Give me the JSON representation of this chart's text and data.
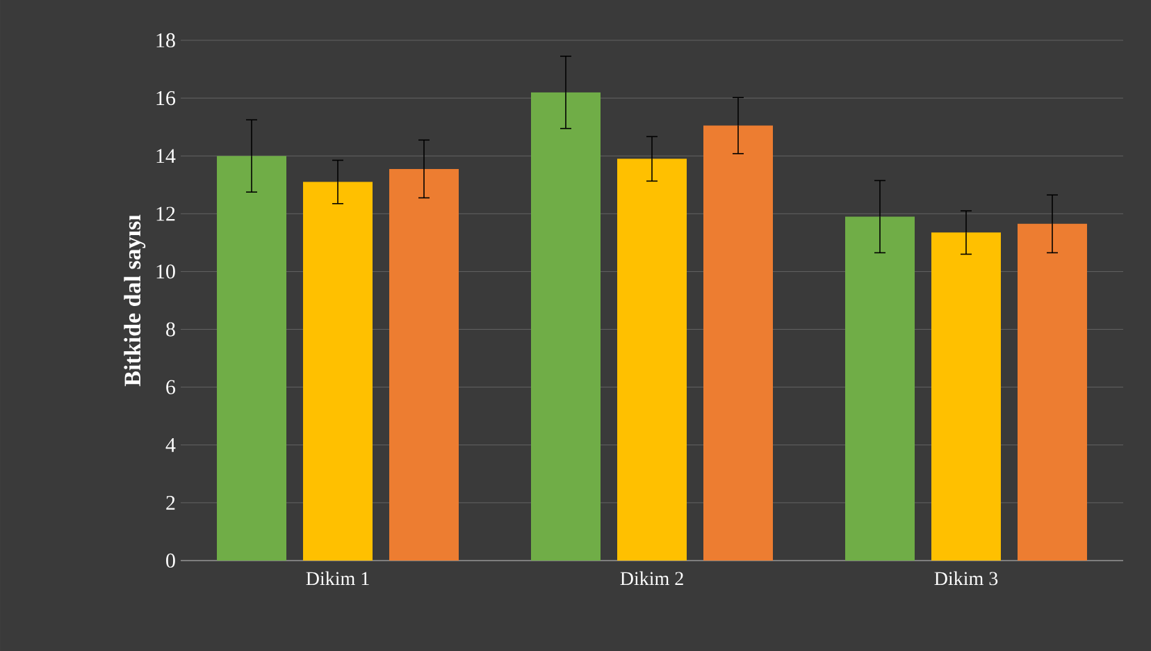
{
  "chart_data": {
    "type": "bar",
    "ylabel": "Bitkide dal sayısı",
    "categories": [
      "Dikim 1",
      "Dikim 2",
      "Dikim 3"
    ],
    "series": [
      {
        "color": "#70ad47",
        "values": [
          14.0,
          16.2,
          11.9
        ],
        "errors": [
          1.25,
          1.25,
          1.25
        ]
      },
      {
        "color": "#ffc000",
        "values": [
          13.1,
          13.9,
          11.35
        ],
        "errors": [
          0.75,
          0.77,
          0.75
        ]
      },
      {
        "color": "#ed7d31",
        "values": [
          13.55,
          15.05,
          11.65
        ],
        "errors": [
          1.0,
          0.97,
          1.0
        ]
      }
    ],
    "ylim": [
      0,
      18
    ],
    "yticks": [
      0,
      2,
      4,
      6,
      8,
      10,
      12,
      14,
      16,
      18
    ],
    "grid": "y"
  }
}
